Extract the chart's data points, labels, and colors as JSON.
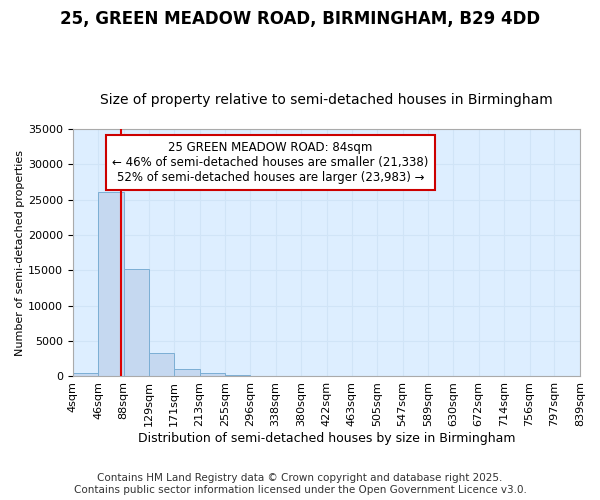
{
  "title1": "25, GREEN MEADOW ROAD, BIRMINGHAM, B29 4DD",
  "title2": "Size of property relative to semi-detached houses in Birmingham",
  "xlabel": "Distribution of semi-detached houses by size in Birmingham",
  "ylabel": "Number of semi-detached properties",
  "bin_edges": [
    4,
    46,
    88,
    129,
    171,
    213,
    255,
    296,
    338,
    380,
    422,
    463,
    505,
    547,
    589,
    630,
    672,
    714,
    756,
    797,
    839
  ],
  "bin_labels": [
    "4sqm",
    "46sqm",
    "88sqm",
    "129sqm",
    "171sqm",
    "213sqm",
    "255sqm",
    "296sqm",
    "338sqm",
    "380sqm",
    "422sqm",
    "463sqm",
    "505sqm",
    "547sqm",
    "589sqm",
    "630sqm",
    "672sqm",
    "714sqm",
    "756sqm",
    "797sqm",
    "839sqm"
  ],
  "bar_heights": [
    500,
    26100,
    15200,
    3300,
    1100,
    500,
    200,
    80,
    30,
    10,
    5,
    3,
    2,
    1,
    1,
    1,
    0,
    0,
    0,
    0
  ],
  "bar_color": "#c5d8f0",
  "bar_edge_color": "#7baed4",
  "grid_color": "#d0e4f7",
  "bg_color": "#ddeeff",
  "property_size": 84,
  "red_line_color": "#dd0000",
  "annotation_text": "25 GREEN MEADOW ROAD: 84sqm\n← 46% of semi-detached houses are smaller (21,338)\n52% of semi-detached houses are larger (23,983) →",
  "annotation_box_color": "#ffffff",
  "annotation_box_edge": "#cc0000",
  "ylim": [
    0,
    35000
  ],
  "yticks": [
    0,
    5000,
    10000,
    15000,
    20000,
    25000,
    30000,
    35000
  ],
  "footer1": "Contains HM Land Registry data © Crown copyright and database right 2025.",
  "footer2": "Contains public sector information licensed under the Open Government Licence v3.0.",
  "title1_fontsize": 12,
  "title2_fontsize": 10,
  "xlabel_fontsize": 9,
  "ylabel_fontsize": 8,
  "tick_fontsize": 8,
  "annotation_fontsize": 8.5,
  "footer_fontsize": 7.5
}
